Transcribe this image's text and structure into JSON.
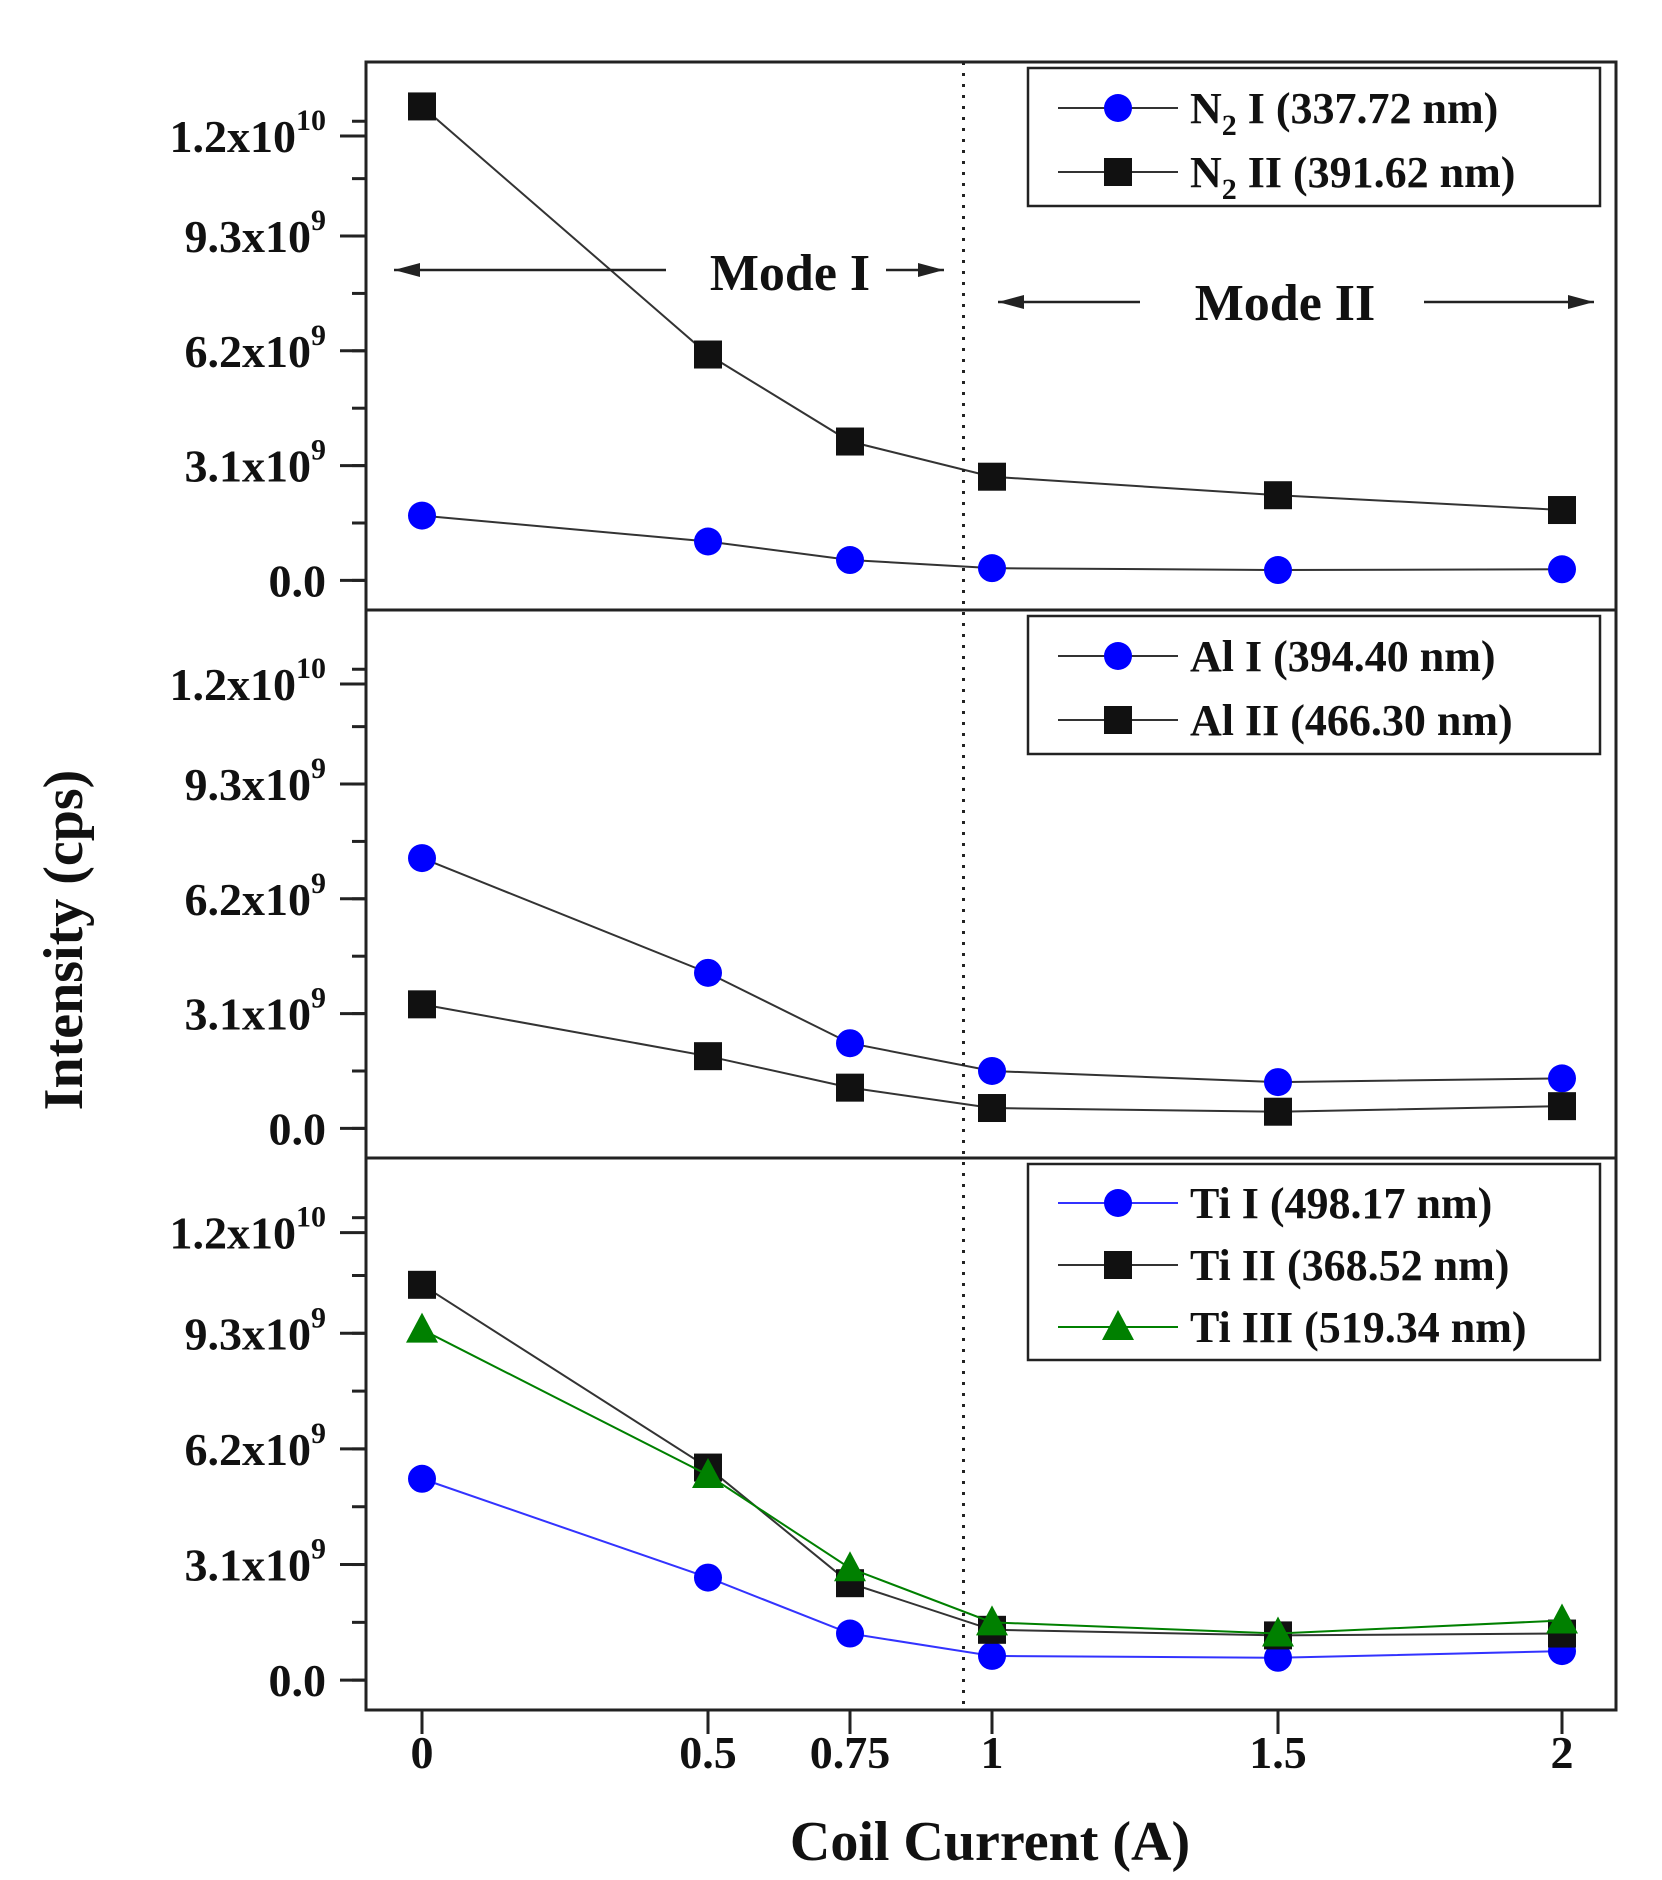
{
  "chart_data": {
    "type": "line",
    "xlabel": "Coil Current (A)",
    "ylabel": "Intensity (cps)",
    "x": [
      0,
      0.5,
      0.75,
      1,
      1.5,
      2
    ],
    "x_tick_labels": [
      "0",
      "0.5",
      "0.75",
      "1",
      "1.5",
      "2"
    ],
    "ylim": [
      -800000000,
      14000000000
    ],
    "y_ticks": [
      {
        "value": 0,
        "mantissa": "0.0",
        "exponent": ""
      },
      {
        "value": 3100000000,
        "mantissa": "3.1x10",
        "exponent": "9"
      },
      {
        "value": 6200000000,
        "mantissa": "6.2x10",
        "exponent": "9"
      },
      {
        "value": 9300000000,
        "mantissa": "9.3x10",
        "exponent": "9"
      },
      {
        "value": 12000000000,
        "mantissa": "1.2x10",
        "exponent": "10"
      }
    ],
    "divider_x": 0.95,
    "mode_labels": {
      "mode1": "Mode I",
      "mode2": "Mode II"
    },
    "panels": [
      {
        "legend_position": "top-right",
        "series": [
          {
            "name": "N2 I (337.72 nm)",
            "name_main": "N",
            "name_sub": "2",
            "name_rest": " I (337.72 nm)",
            "marker": "circle",
            "color": "#0000ff",
            "line_color": "#333333",
            "values": [
              1750000000,
              1050000000,
              550000000,
              330000000,
              280000000,
              300000000
            ]
          },
          {
            "name": "N2 II (391.62 nm)",
            "name_main": "N",
            "name_sub": "2",
            "name_rest": " II (391.62 nm)",
            "marker": "square",
            "color": "#111111",
            "line_color": "#333333",
            "values": [
              12800000000,
              6100000000,
              3750000000,
              2800000000,
              2300000000,
              1900000000
            ]
          }
        ]
      },
      {
        "legend_position": "top-right",
        "series": [
          {
            "name": "Al I (394.40 nm)",
            "name_main": "Al I (394.40 nm)",
            "name_sub": "",
            "name_rest": "",
            "marker": "circle",
            "color": "#0000ff",
            "line_color": "#333333",
            "values": [
              7300000000,
              4200000000,
              2300000000,
              1550000000,
              1250000000,
              1350000000
            ]
          },
          {
            "name": "Al II (466.30 nm)",
            "name_main": "Al II (466.30 nm)",
            "name_sub": "",
            "name_rest": "",
            "marker": "square",
            "color": "#111111",
            "line_color": "#333333",
            "values": [
              3350000000,
              1950000000,
              1100000000,
              550000000,
              450000000,
              600000000
            ]
          }
        ]
      },
      {
        "legend_position": "top-right",
        "series": [
          {
            "name": "Ti I (498.17 nm)",
            "name_main": "Ti I (498.17 nm)",
            "name_sub": "",
            "name_rest": "",
            "marker": "circle",
            "color": "#0000ff",
            "line_color": "#3333ff",
            "values": [
              5400000000,
              2750000000,
              1250000000,
              650000000,
              600000000,
              780000000
            ]
          },
          {
            "name": "Ti II (368.52 nm)",
            "name_main": "Ti II (368.52 nm)",
            "name_sub": "",
            "name_rest": "",
            "marker": "square",
            "color": "#111111",
            "line_color": "#333333",
            "values": [
              10600000000,
              5700000000,
              2600000000,
              1350000000,
              1200000000,
              1250000000
            ]
          },
          {
            "name": "Ti III (519.34 nm)",
            "name_main": "Ti III (519.34 nm)",
            "name_sub": "",
            "name_rest": "",
            "marker": "triangle",
            "color": "#008000",
            "line_color": "#008000",
            "values": [
              9400000000,
              5500000000,
              3000000000,
              1550000000,
              1250000000,
              1600000000
            ]
          }
        ]
      }
    ]
  }
}
